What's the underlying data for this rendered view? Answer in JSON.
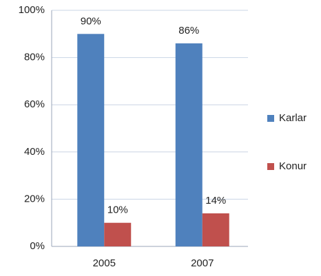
{
  "chart_data": {
    "type": "bar",
    "categories": [
      "2005",
      "2007"
    ],
    "series": [
      {
        "name": "Karlar",
        "color": "#4f81bd",
        "values": [
          90,
          86
        ],
        "value_labels": [
          "90%",
          "86%"
        ]
      },
      {
        "name": "Konur",
        "color": "#c0504d",
        "values": [
          10,
          14
        ],
        "value_labels": [
          "10%",
          "14%"
        ]
      }
    ],
    "ylim": [
      0,
      100
    ],
    "yticks": [
      {
        "value": 0,
        "label": "0%"
      },
      {
        "value": 20,
        "label": "20%"
      },
      {
        "value": 40,
        "label": "40%"
      },
      {
        "value": 60,
        "label": "60%"
      },
      {
        "value": 80,
        "label": "80%"
      },
      {
        "value": 100,
        "label": "100%"
      }
    ],
    "grid": true,
    "legend": "right"
  }
}
